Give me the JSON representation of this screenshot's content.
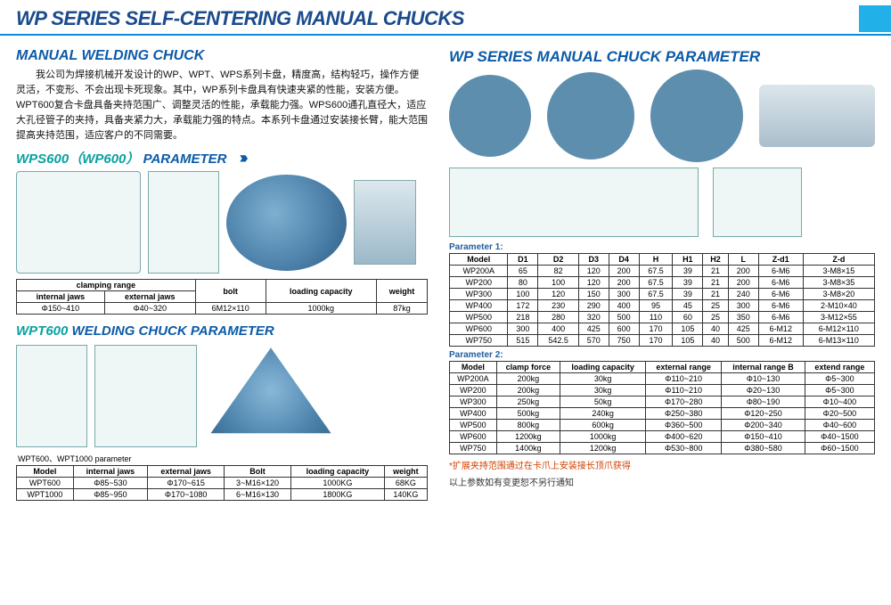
{
  "title": "WP SERIES SELF-CENTERING MANUAL CHUCKS",
  "colors": {
    "accent": "#21b0e8",
    "heading": "#0b5aa8",
    "teal": "#0aa0a0",
    "rule": "#098ed6",
    "note": "#d04000"
  },
  "left": {
    "h1": "MANUAL WELDING CHUCK",
    "para": "我公司为焊接机械开发设计的WP、WPT、WPS系列卡盘，精度高，结构轻巧，操作方便灵活，不变形、不会出现卡死现象。其中，WP系列卡盘具有快速夹紧的性能，安装方便。WPT600复合卡盘具备夹持范围广、调整灵活的性能，承载能力强。WPS600通孔直径大，适应大孔径管子的夹持，具备夹紧力大，承载能力强的特点。本系列卡盘通过安装接长臂，能大范围提高夹持范围，适应客户的不同需要。",
    "sub1_teal": "WPS600（WP600）",
    "sub1_blue": "PARAMETER",
    "arrows": "›››",
    "wps_table": {
      "head_top": [
        "clamping range",
        "bolt",
        "loading capacity",
        "weight"
      ],
      "head_sub": [
        "internal jaws",
        "external jaws"
      ],
      "row": [
        "Φ150~410",
        "Φ40~320",
        "6M12×110",
        "1000kg",
        "87kg"
      ]
    },
    "sub2_teal": "WPT600",
    "sub2_blue": "WELDING CHUCK PARAMETER",
    "wpt_caption": "WPT600、WPT1000 parameter",
    "wpt_table": {
      "head": [
        "Model",
        "internal jaws",
        "external jaws",
        "Bolt",
        "loading capacity",
        "weight"
      ],
      "rows": [
        [
          "WPT600",
          "Φ85~530",
          "Φ170~615",
          "3~M16×120",
          "1000KG",
          "68KG"
        ],
        [
          "WPT1000",
          "Φ85~950",
          "Φ170~1080",
          "6~M16×130",
          "1800KG",
          "140KG"
        ]
      ]
    }
  },
  "right": {
    "h1": "WP SERIES MANUAL CHUCK PARAMETER",
    "param1_label": "Parameter 1:",
    "p1": {
      "head": [
        "Model",
        "D1",
        "D2",
        "D3",
        "D4",
        "H",
        "H1",
        "H2",
        "L",
        "Z-d1",
        "Z-d"
      ],
      "rows": [
        [
          "WP200A",
          "65",
          "82",
          "120",
          "200",
          "67.5",
          "39",
          "21",
          "200",
          "6-M6",
          "3-M8×15"
        ],
        [
          "WP200",
          "80",
          "100",
          "120",
          "200",
          "67.5",
          "39",
          "21",
          "200",
          "6-M6",
          "3-M8×35"
        ],
        [
          "WP300",
          "100",
          "120",
          "150",
          "300",
          "67.5",
          "39",
          "21",
          "240",
          "6-M6",
          "3-M8×20"
        ],
        [
          "WP400",
          "172",
          "230",
          "290",
          "400",
          "95",
          "45",
          "25",
          "300",
          "6-M6",
          "2-M10×40"
        ],
        [
          "WP500",
          "218",
          "280",
          "320",
          "500",
          "110",
          "60",
          "25",
          "350",
          "6-M6",
          "3-M12×55"
        ],
        [
          "WP600",
          "300",
          "400",
          "425",
          "600",
          "170",
          "105",
          "40",
          "425",
          "6-M12",
          "6-M12×110"
        ],
        [
          "WP750",
          "515",
          "542.5",
          "570",
          "750",
          "170",
          "105",
          "40",
          "500",
          "6-M12",
          "6-M13×110"
        ]
      ]
    },
    "param2_label": "Parameter 2:",
    "p2": {
      "head": [
        "Model",
        "clamp force",
        "loading capacity",
        "external range",
        "internal range B",
        "extend range"
      ],
      "rows": [
        [
          "WP200A",
          "200kg",
          "30kg",
          "Φ110~210",
          "Φ10~130",
          "Φ5~300"
        ],
        [
          "WP200",
          "200kg",
          "30kg",
          "Φ110~210",
          "Φ20~130",
          "Φ5~300"
        ],
        [
          "WP300",
          "250kg",
          "50kg",
          "Φ170~280",
          "Φ80~190",
          "Φ10~400"
        ],
        [
          "WP400",
          "500kg",
          "240kg",
          "Φ250~380",
          "Φ120~250",
          "Φ20~500"
        ],
        [
          "WP500",
          "800kg",
          "600kg",
          "Φ360~500",
          "Φ200~340",
          "Φ40~600"
        ],
        [
          "WP600",
          "1200kg",
          "1000kg",
          "Φ400~620",
          "Φ150~410",
          "Φ40~1500"
        ],
        [
          "WP750",
          "1400kg",
          "1200kg",
          "Φ530~800",
          "Φ380~580",
          "Φ60~1500"
        ]
      ]
    },
    "note1": "*扩展夹持范围通过在卡爪上安装接长顶爪获得",
    "note2": "以上参数如有变更恕不另行通知"
  }
}
